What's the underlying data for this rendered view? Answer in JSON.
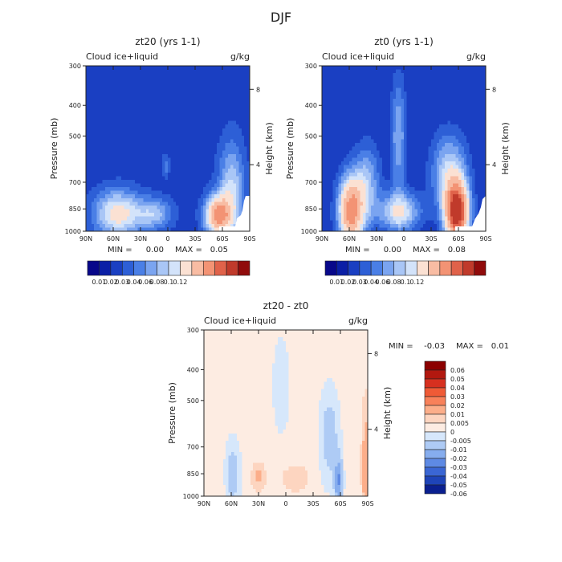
{
  "figure": {
    "title": "DJF"
  },
  "chart_data": [
    {
      "type": "heatmap",
      "title": "zt20 (yrs 1-1)",
      "field_label": "Cloud ice+liquid",
      "units": "g/kg",
      "ylabel": "Pressure (mb)",
      "ylabel_right": "Height (km)",
      "x_ticks": [
        "90N",
        "60N",
        "30N",
        "0",
        "30S",
        "60S",
        "90S"
      ],
      "y_ticks": [
        "300",
        "400",
        "500",
        "700",
        "850",
        "1000"
      ],
      "y_ticks_right": [
        "8",
        "4"
      ],
      "xlim": [
        90,
        -90
      ],
      "ylim": [
        1000,
        300
      ],
      "stats": {
        "min_label": "MIN =",
        "min": "0.00",
        "max_label": "MAX =",
        "max": "0.05"
      },
      "colorbar_labels": [
        "0.01",
        "0.02",
        "0.03",
        "0.04",
        "0.06",
        "0.08",
        "0.1",
        "0.12"
      ]
    },
    {
      "type": "heatmap",
      "title": "zt0 (yrs 1-1)",
      "field_label": "Cloud ice+liquid",
      "units": "g/kg",
      "ylabel": "Pressure (mb)",
      "ylabel_right": "Height (km)",
      "x_ticks": [
        "90N",
        "60N",
        "30N",
        "0",
        "30S",
        "60S",
        "90S"
      ],
      "y_ticks": [
        "300",
        "400",
        "500",
        "700",
        "850",
        "1000"
      ],
      "y_ticks_right": [
        "8",
        "4"
      ],
      "xlim": [
        90,
        -90
      ],
      "ylim": [
        1000,
        300
      ],
      "stats": {
        "min_label": "MIN =",
        "min": "0.00",
        "max_label": "MAX =",
        "max": "0.08"
      },
      "colorbar_labels": [
        "0.01",
        "0.02",
        "0.03",
        "0.04",
        "0.06",
        "0.08",
        "0.1",
        "0.12"
      ]
    },
    {
      "type": "heatmap",
      "title": "zt20 - zt0",
      "field_label": "Cloud ice+liquid",
      "units": "g/kg",
      "ylabel": "Pressure (mb)",
      "ylabel_right": "Height (km)",
      "x_ticks": [
        "90N",
        "60N",
        "30N",
        "0",
        "30S",
        "60S",
        "90S"
      ],
      "y_ticks": [
        "300",
        "400",
        "500",
        "700",
        "850",
        "1000"
      ],
      "y_ticks_right": [
        "8",
        "4"
      ],
      "xlim": [
        90,
        -90
      ],
      "ylim": [
        1000,
        300
      ],
      "stats": {
        "min_label": "MIN =",
        "min": "-0.03",
        "max_label": "MAX =",
        "max": "0.01"
      },
      "colorbar_labels": [
        "0.06",
        "0.05",
        "0.04",
        "0.03",
        "0.02",
        "0.01",
        "0.005",
        "0",
        "-0.005",
        "-0.01",
        "-0.02",
        "-0.03",
        "-0.04",
        "-0.05",
        "-0.06"
      ]
    }
  ],
  "colors": {
    "seq": [
      "#08088a",
      "#0b1fa6",
      "#1a3fc2",
      "#2d5fd6",
      "#4a7fe6",
      "#7aa4f0",
      "#a9c6f6",
      "#d3e3fa",
      "#fbe1d3",
      "#f8bca3",
      "#f39374",
      "#e0624a",
      "#c03a2b",
      "#900b0b"
    ],
    "div": [
      "#8b0000",
      "#b2180f",
      "#d7301f",
      "#ef5a36",
      "#f8815a",
      "#fcae8a",
      "#fdd5c0",
      "#fdece2",
      "#d6e7fb",
      "#aecbf5",
      "#86adee",
      "#5e8ae4",
      "#3a66d4",
      "#1e44b8",
      "#0a1f8f"
    ]
  }
}
